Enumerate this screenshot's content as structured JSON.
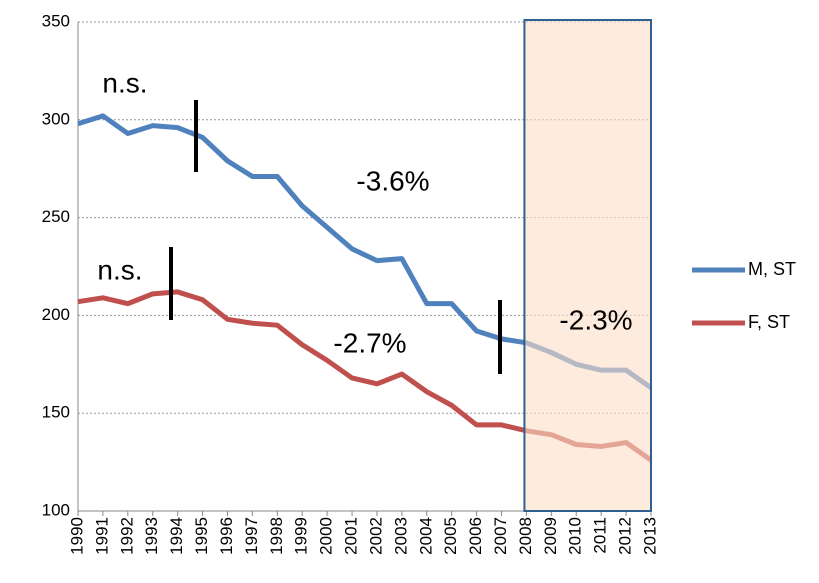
{
  "chart_data": {
    "type": "line",
    "categories": [
      "1990",
      "1991",
      "1992",
      "1993",
      "1994",
      "1995",
      "1996",
      "1997",
      "1998",
      "1999",
      "2000",
      "2001",
      "2002",
      "2003",
      "2004",
      "2005",
      "2006",
      "2007",
      "2008",
      "2009",
      "2010",
      "2011",
      "2012",
      "2013"
    ],
    "series": [
      {
        "name": "M, ST",
        "color": "#4f81bd",
        "values": [
          298,
          302,
          293,
          297,
          296,
          291,
          279,
          271,
          271,
          256,
          245,
          234,
          228,
          229,
          206,
          206,
          192,
          188,
          186,
          181,
          175,
          172,
          172,
          163
        ]
      },
      {
        "name": "F, ST",
        "color": "#c0504d",
        "values": [
          207,
          209,
          206,
          211,
          212,
          208,
          198,
          196,
          195,
          185,
          177,
          168,
          165,
          170,
          161,
          154,
          144,
          144,
          141,
          139,
          134,
          133,
          135,
          126
        ]
      }
    ],
    "annotations": [
      "n.s.",
      "-3.6%",
      "n.s.",
      "-2.7%",
      "-2.3%"
    ],
    "ylim": [
      100,
      350
    ],
    "yticks": [
      100,
      150,
      200,
      250,
      300,
      350
    ],
    "grid": true
  }
}
